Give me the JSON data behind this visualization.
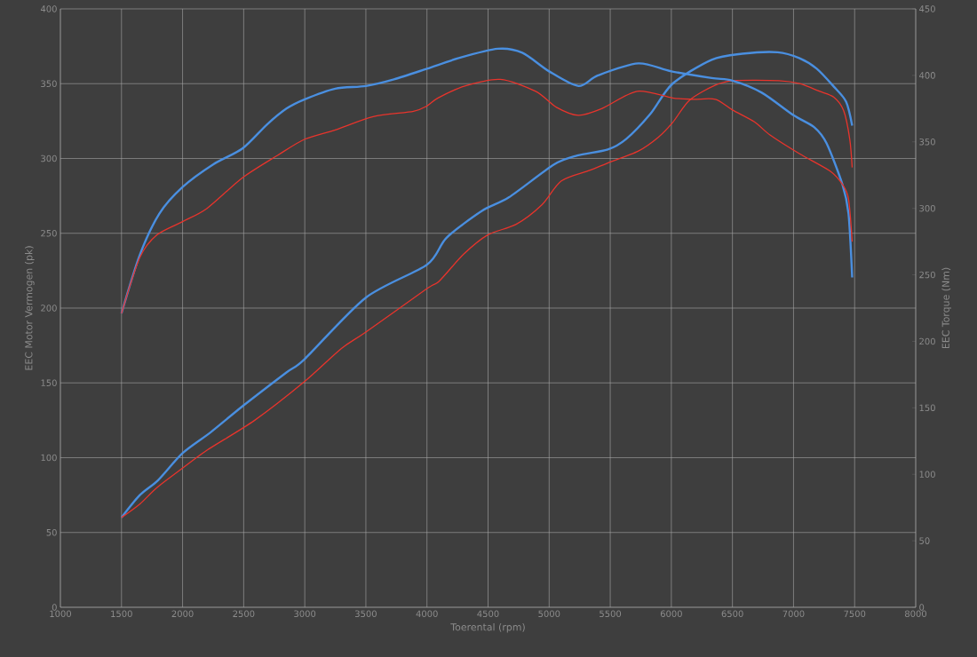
{
  "chart_data": {
    "type": "line",
    "xlabel": "Toerental (rpm)",
    "ylabel": "EEC Motor Vermogen (pk)",
    "y2label": "EEC Torque (Nm)",
    "xlim": [
      1000,
      8000
    ],
    "xticks": [
      1000,
      1500,
      2000,
      2500,
      3000,
      3500,
      4000,
      4500,
      5000,
      5500,
      6000,
      6500,
      7000,
      7500,
      8000
    ],
    "ylim": [
      0,
      400
    ],
    "yticks": [
      0,
      50,
      100,
      150,
      200,
      250,
      300,
      350,
      400
    ],
    "y2lim": [
      0,
      450
    ],
    "y2ticks": [
      0,
      50,
      100,
      150,
      200,
      250,
      300,
      350,
      400,
      450
    ],
    "grid": true,
    "series": [
      {
        "color": "#4a8fe0",
        "x": [
          1500,
          1650,
          1800,
          2000,
          2230,
          2500,
          2850,
          3000,
          3500,
          4000,
          4160,
          4450,
          4670,
          5040,
          5230,
          5480,
          5630,
          5830,
          6010,
          6330,
          6580,
          6870,
          7050,
          7190,
          7330,
          7430,
          7480
        ],
        "values": [
          60,
          75,
          85,
          103,
          117,
          135,
          157,
          166,
          207,
          229,
          247,
          265,
          274,
          296,
          302,
          306,
          313,
          330,
          350,
          366,
          370,
          371,
          367,
          360,
          348,
          338,
          322
        ]
      },
      {
        "color": "#e8342c",
        "x": [
          1500,
          1650,
          1790,
          2000,
          2200,
          2590,
          3000,
          3300,
          3500,
          4000,
          4100,
          4300,
          4500,
          4730,
          4940,
          5100,
          5330,
          5480,
          5730,
          5890,
          6010,
          6150,
          6360,
          6510,
          6880,
          7050,
          7210,
          7330,
          7410,
          7460,
          7480
        ],
        "values": [
          60,
          69,
          80,
          93,
          105,
          125,
          151,
          173,
          184,
          213,
          218,
          236,
          249,
          256,
          269,
          285,
          292,
          297,
          305,
          314,
          324,
          339,
          349,
          352,
          352,
          350,
          345,
          341,
          332,
          313,
          294
        ]
      },
      {
        "axis": "y2",
        "color": "#4a8fe0",
        "x": [
          1500,
          1650,
          1810,
          2000,
          2250,
          2490,
          2690,
          2850,
          3000,
          3250,
          3500,
          3730,
          4000,
          4260,
          4580,
          4780,
          5000,
          5240,
          5400,
          5730,
          6000,
          6330,
          6500,
          6740,
          7000,
          7170,
          7270,
          7400,
          7450,
          7480
        ],
        "values": [
          221,
          265,
          296,
          316,
          333,
          345,
          363,
          375,
          382,
          390,
          392,
          397,
          405,
          413,
          420,
          417,
          403,
          392,
          400,
          409,
          403,
          398,
          396,
          387,
          370,
          361,
          349,
          318,
          296,
          248
        ]
      },
      {
        "axis": "y2",
        "color": "#e8342c",
        "x": [
          1500,
          1650,
          1790,
          2000,
          2200,
          2490,
          2780,
          3000,
          3250,
          3560,
          3890,
          4000,
          4090,
          4310,
          4600,
          4890,
          5060,
          5240,
          5430,
          5720,
          6010,
          6180,
          6360,
          6500,
          6680,
          6810,
          7050,
          7300,
          7400,
          7450,
          7480
        ],
        "values": [
          221,
          263,
          280,
          290,
          300,
          323,
          340,
          352,
          359,
          369,
          373,
          377,
          383,
          392,
          397,
          388,
          376,
          370,
          375,
          388,
          383,
          382,
          382,
          374,
          365,
          355,
          341,
          328,
          318,
          307,
          275
        ]
      }
    ]
  }
}
